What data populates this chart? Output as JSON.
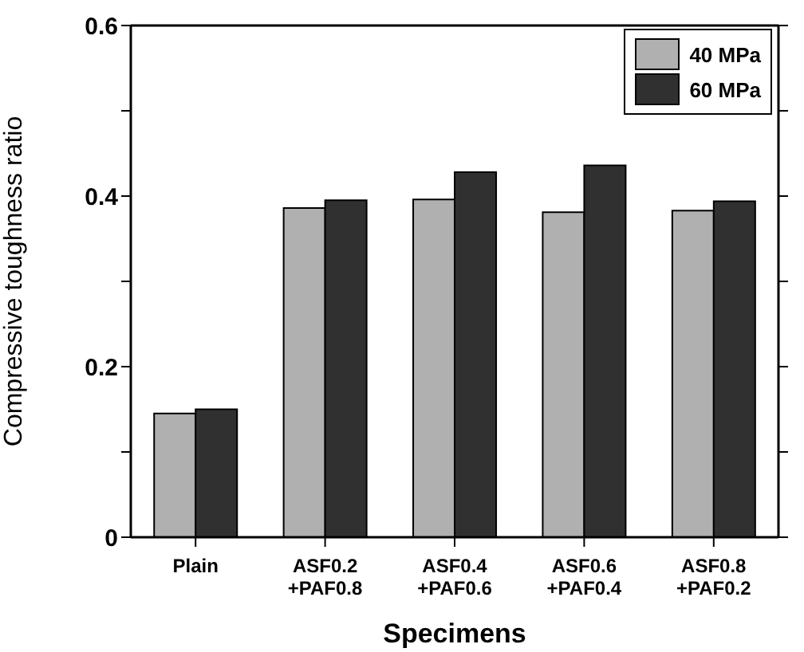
{
  "chart_data": {
    "type": "bar",
    "xlabel": "Specimens",
    "ylabel": "Compressive toughness ratio",
    "categories": [
      "Plain",
      "ASF0.2 +PAF0.8",
      "ASF0.4 +PAF0.6",
      "ASF0.6 +PAF0.4",
      "ASF0.8 +PAF0.2"
    ],
    "series": [
      {
        "name": "40 MPa",
        "color": "#b0b0b0",
        "values": [
          0.145,
          0.386,
          0.396,
          0.381,
          0.383
        ]
      },
      {
        "name": "60 MPa",
        "color": "#303030",
        "values": [
          0.15,
          0.395,
          0.428,
          0.436,
          0.394
        ]
      }
    ],
    "ylim": [
      0,
      0.6
    ],
    "yticks": [
      0,
      {
        "value": 0.1,
        "label": null
      },
      0.2,
      {
        "value": 0.3,
        "label": null
      },
      0.4,
      {
        "value": 0.5,
        "label": null
      },
      0.6
    ],
    "grid": false,
    "legend": "top right"
  }
}
